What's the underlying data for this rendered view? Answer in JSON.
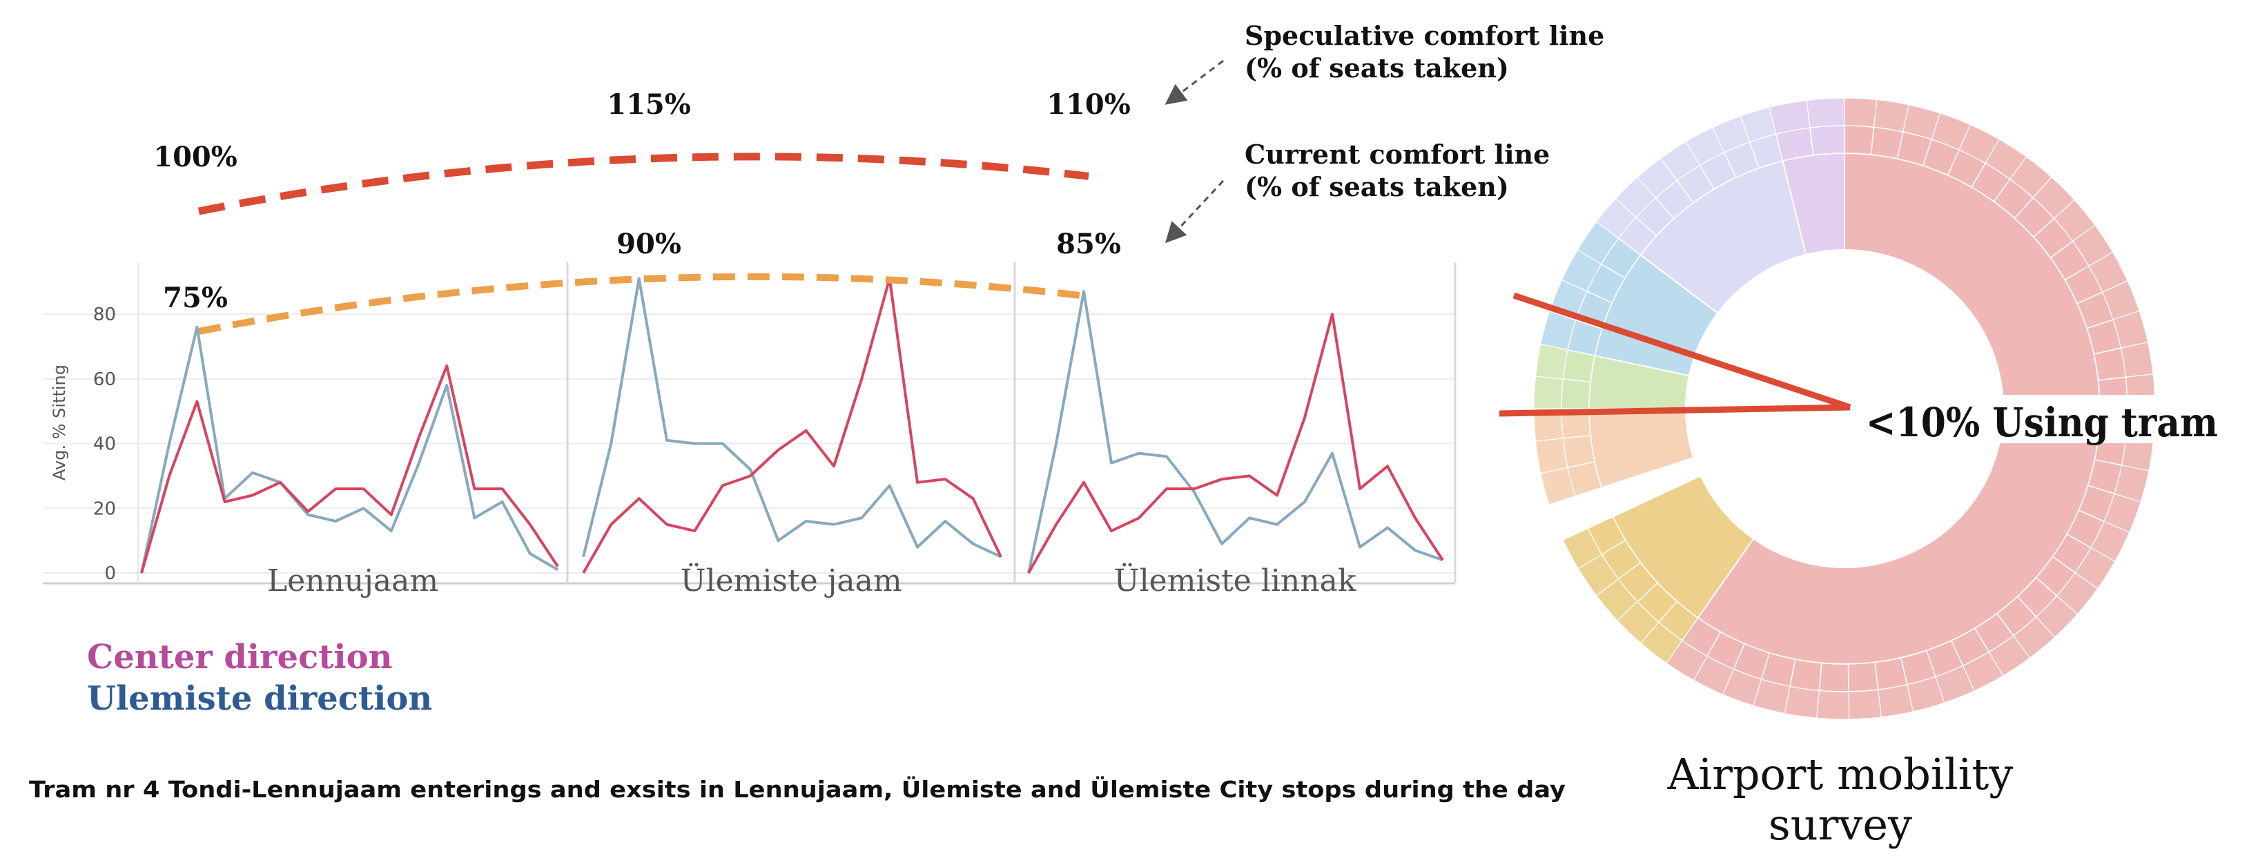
{
  "chart_data": [
    {
      "type": "line",
      "ylabel": "Avg. % Sitting",
      "yticks": [
        "0",
        "20",
        "40",
        "60",
        "80"
      ],
      "ylim": [
        0,
        95
      ],
      "grid": "horizontal",
      "panels": [
        {
          "label": "Lennujaam",
          "series": [
            {
              "name": "Center direction",
              "color": "#d6455f",
              "values": [
                0,
                30,
                53,
                22,
                24,
                28,
                19,
                26,
                26,
                18,
                42,
                64,
                26,
                26,
                15,
                2
              ]
            },
            {
              "name": "Ulemiste direction",
              "color": "#86a9bd",
              "values": [
                0,
                40,
                76,
                23,
                31,
                28,
                18,
                16,
                20,
                13,
                34,
                58,
                17,
                22,
                6,
                1
              ]
            }
          ]
        },
        {
          "label": "Ülemiste jaam",
          "series": [
            {
              "name": "Center direction",
              "color": "#d6455f",
              "values": [
                0,
                15,
                23,
                15,
                13,
                27,
                30,
                38,
                44,
                33,
                60,
                91,
                28,
                29,
                23,
                5
              ]
            },
            {
              "name": "Ulemiste direction",
              "color": "#86a9bd",
              "values": [
                5,
                40,
                91,
                41,
                40,
                40,
                32,
                10,
                16,
                15,
                17,
                27,
                8,
                16,
                9,
                5
              ]
            }
          ]
        },
        {
          "label": "Ülemiste linnak",
          "series": [
            {
              "name": "Center direction",
              "color": "#d6455f",
              "values": [
                0,
                15,
                28,
                13,
                17,
                26,
                26,
                29,
                30,
                24,
                48,
                80,
                26,
                33,
                17,
                4
              ]
            },
            {
              "name": "Ulemiste direction",
              "color": "#86a9bd",
              "values": [
                0,
                40,
                87,
                34,
                37,
                36,
                25,
                9,
                17,
                15,
                22,
                37,
                8,
                14,
                7,
                4
              ]
            }
          ]
        }
      ],
      "comfort_lines": [
        {
          "label_lines": [
            "Current comfort line",
            "(% of seats taken)"
          ],
          "color": "#eca04a",
          "points": [
            {
              "label": "75%",
              "value": 75
            },
            {
              "label": "90%",
              "value": 90
            },
            {
              "label": "85%",
              "value": 85
            }
          ]
        },
        {
          "label_lines": [
            "Speculative comfort line",
            "(% of seats taken)"
          ],
          "color": "#db4a32",
          "points": [
            {
              "label": "100%",
              "value": 100
            },
            {
              "label": "115%",
              "value": 115
            },
            {
              "label": "110%",
              "value": 110
            }
          ]
        }
      ],
      "legend": [
        {
          "label": "Center direction",
          "color": "#b84a9a"
        },
        {
          "label": "Ulemiste direction",
          "color": "#2e5b94"
        }
      ],
      "caption": "Tram nr 4 Tondi-Lennujaam enterings and exsits in Lennujaam, Ülemiste and Ülemiste City stops during the day"
    },
    {
      "type": "sunburst",
      "annotation": "<10% Using tram",
      "title_lines": [
        "Airport mobility",
        "survey"
      ],
      "segments": [
        {
          "color": "#efb8b6",
          "share": 0.69
        },
        {
          "color": "#ecd08c",
          "share": 0.08
        },
        {
          "color": "#f6d2b6",
          "share": 0.06
        },
        {
          "color": "#d3e8b8",
          "share": 0.025
        },
        {
          "color": "#bcdcee",
          "share": 0.07
        },
        {
          "color": "#dcdcf4",
          "share": 0.065
        },
        {
          "color": "#e2cff0",
          "share": 0.01
        }
      ],
      "pointer_color": "#db4a32"
    }
  ]
}
